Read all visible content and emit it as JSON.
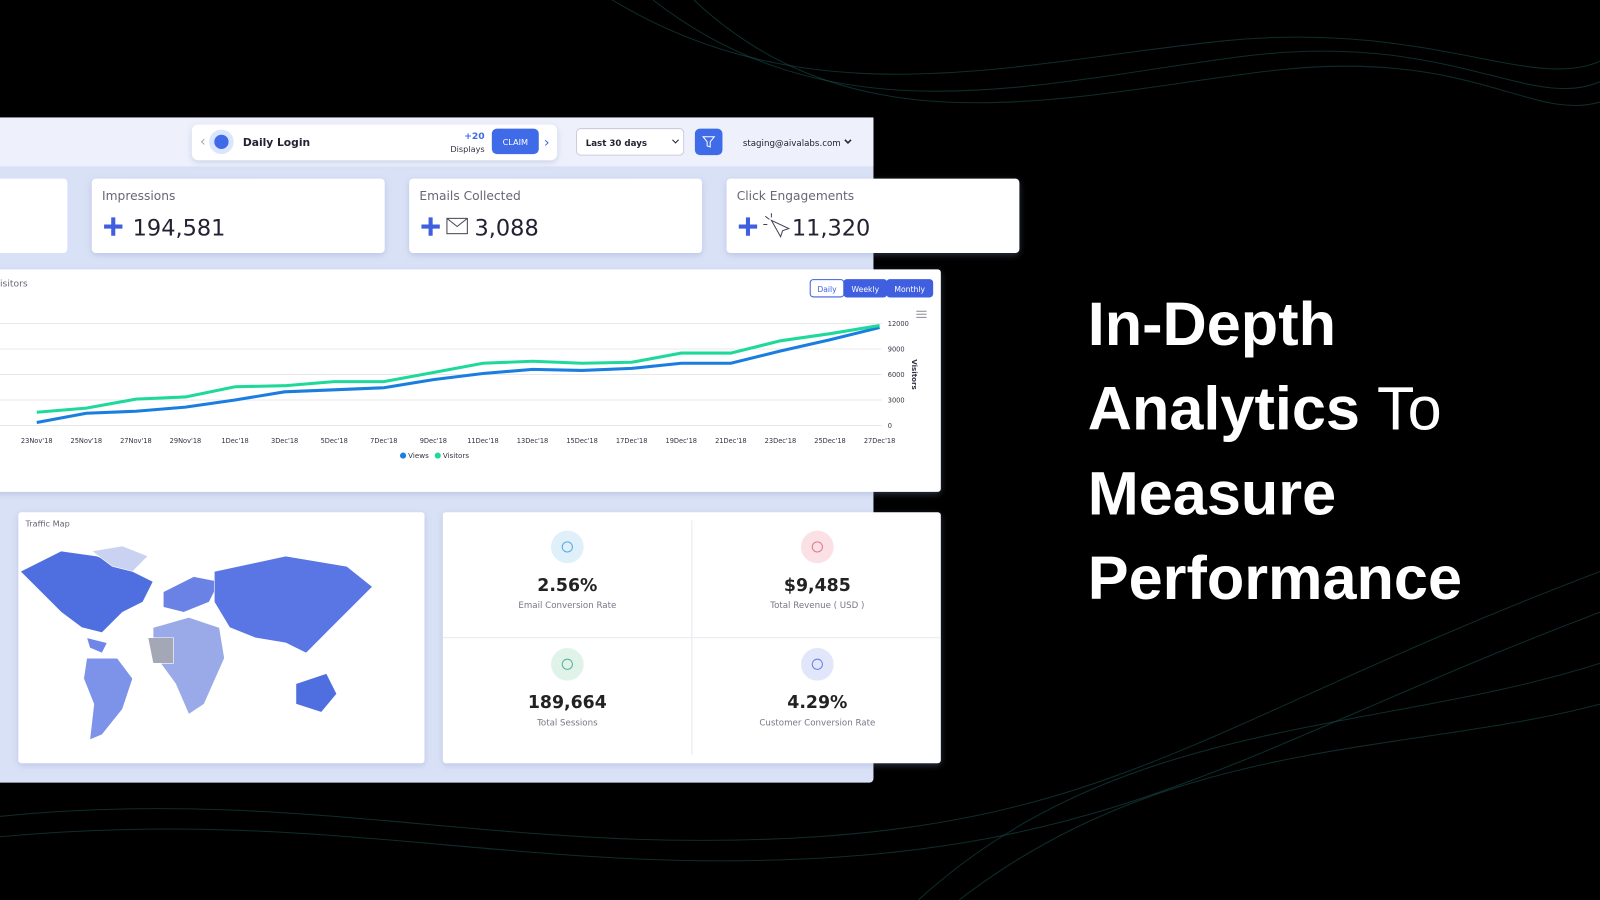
{
  "header": {
    "daily_login": {
      "title": "Daily Login",
      "reward": "+20",
      "reward_unit": "Displays",
      "button": "CLAIM"
    },
    "date_range": "Last 30 days",
    "email": "staging@aivalabs.com"
  },
  "stats": [
    {
      "label": "Impressions",
      "value": "194,581"
    },
    {
      "label": "Emails Collected",
      "value": "3,088"
    },
    {
      "label": "Click Engagements",
      "value": "11,320"
    }
  ],
  "chart": {
    "title": "isitors",
    "toggles": [
      "Daily",
      "Weekly",
      "Monthly"
    ],
    "chart_data": {
      "type": "line",
      "y_axis_label": "Visitors",
      "categories": [
        "23Nov'18",
        "25Nov'18",
        "27Nov'18",
        "29Nov'18",
        "1Dec'18",
        "3Dec'18",
        "5Dec'18",
        "7Dec'18",
        "9Dec'18",
        "11Dec'18",
        "13Dec'18",
        "15Dec'18",
        "17Dec'18",
        "19Dec'18",
        "21Dec'18",
        "23Dec'18",
        "25Dec'18",
        "27Dec'18"
      ],
      "series": [
        {
          "name": "Views",
          "color": "#1a7ee0",
          "values": [
            360,
            1440,
            1680,
            2160,
            3000,
            3960,
            4200,
            4440,
            5400,
            6120,
            6600,
            6480,
            6720,
            7320,
            7320,
            8760,
            10080,
            11520
          ]
        },
        {
          "name": "Visitors",
          "color": "#1fd99a",
          "values": [
            1560,
            2040,
            3100,
            3360,
            4560,
            4680,
            5160,
            5160,
            6240,
            7320,
            7560,
            7320,
            7440,
            8520,
            8520,
            9960,
            10800,
            11760
          ]
        }
      ],
      "ylim": [
        0,
        12000
      ],
      "yticks": [
        0,
        3000,
        6000,
        9000,
        12000
      ],
      "grid": true,
      "legend": "bottom"
    }
  },
  "traffic_map": {
    "title": "Traffic Map"
  },
  "metrics": [
    {
      "value": "2.56%",
      "label": "Email Conversion Rate"
    },
    {
      "value": "$9,485",
      "label": "Total Revenue ( USD )"
    },
    {
      "value": "189,664",
      "label": "Total Sessions"
    },
    {
      "value": "4.29%",
      "label": "Customer Conversion Rate"
    }
  ],
  "headline": [
    "In-Depth",
    "Analytics",
    "To",
    "Measure",
    "Performance"
  ]
}
